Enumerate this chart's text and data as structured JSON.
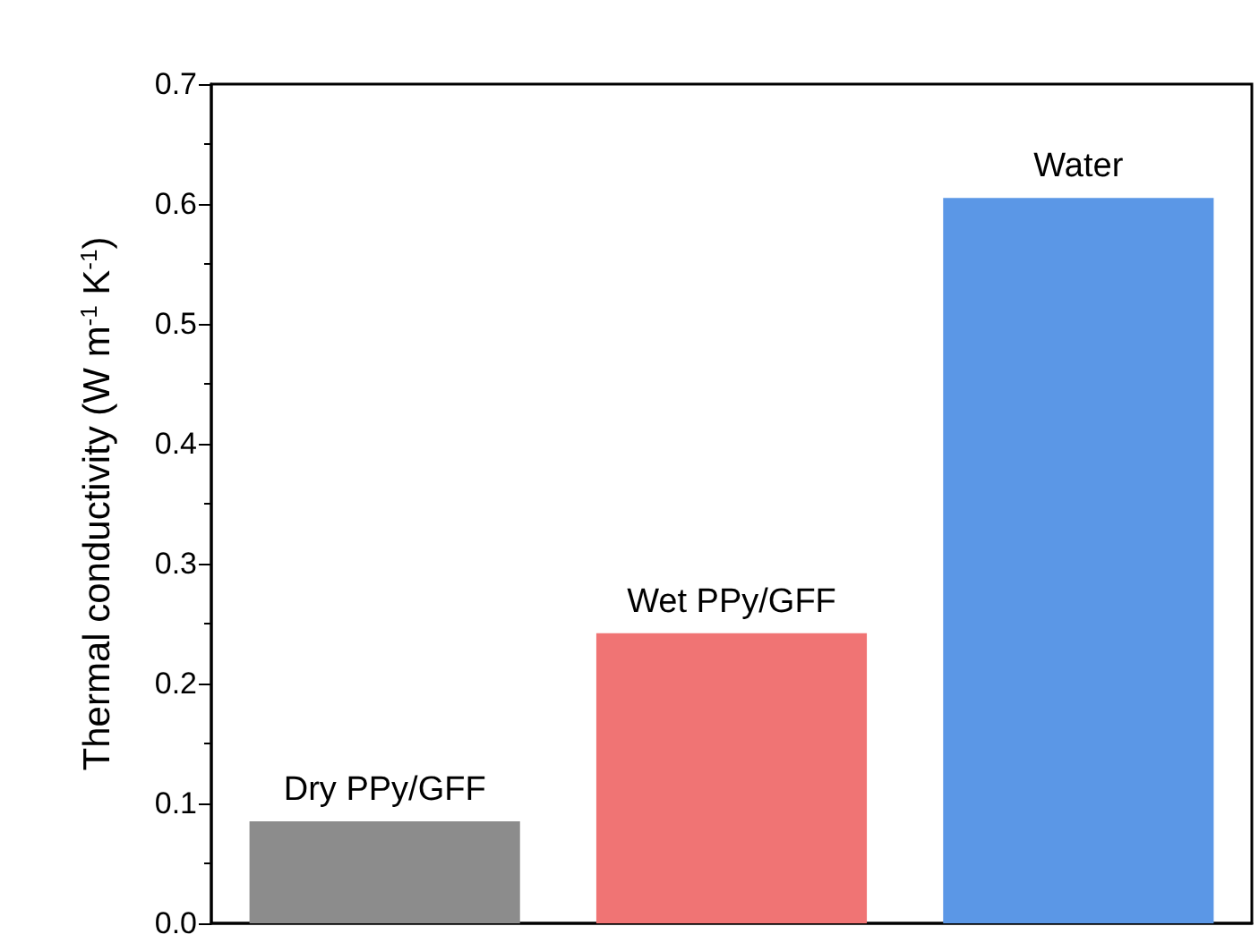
{
  "chart_data": {
    "type": "bar",
    "ylabel": "Thermal conductivity (W m$^{-1}$ K$^{-1}$)",
    "categories": [
      "Dry PPy/GFF",
      "Wet PPy/GFF",
      "Water"
    ],
    "values": [
      0.085,
      0.242,
      0.605
    ],
    "colors": [
      "#8c8c8c",
      "#f07474",
      "#5b97e6"
    ],
    "ylim": [
      0,
      0.7
    ],
    "yticks": [
      {
        "value": 0,
        "label": "0.0"
      },
      0.1,
      0.2,
      0.3,
      0.4,
      0.5,
      0.6,
      0.7
    ],
    "tick_labels": "y",
    "grid": false
  }
}
